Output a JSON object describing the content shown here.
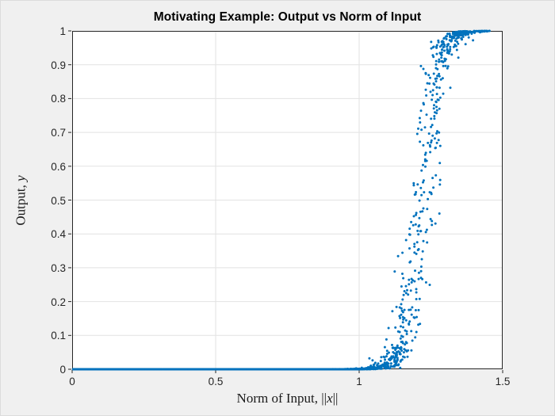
{
  "figure": {
    "background_color": "#f0f0f0",
    "axes_background_color": "#ffffff",
    "axes_border_color": "#262626",
    "grid_color": "#e2e2e2",
    "tick_mark_color": "#262626",
    "tick_label_color": "#252525",
    "marker_color": "#0072bd"
  },
  "chart_data": {
    "type": "scatter",
    "title": "Motivating Example: Output vs Norm of Input",
    "xlabel": {
      "prefix": "Norm of Input, ",
      "open_bar": "||",
      "symbol": "x",
      "close_bar": "||"
    },
    "ylabel": {
      "prefix": "Output, ",
      "symbol": "y"
    },
    "xlim": [
      0,
      1.5
    ],
    "ylim": [
      0,
      1
    ],
    "x_ticks": {
      "values": [
        0,
        0.5,
        1,
        1.5
      ],
      "labels": [
        "0",
        "0.5",
        "1",
        "1.5"
      ]
    },
    "y_ticks": {
      "values": [
        0,
        0.1,
        0.2,
        0.3,
        0.4,
        0.5,
        0.6,
        0.7,
        0.8,
        0.9,
        1
      ],
      "labels": [
        "0",
        "0.1",
        "0.2",
        "0.3",
        "0.4",
        "0.5",
        "0.6",
        "0.7",
        "0.8",
        "0.9",
        "1"
      ]
    },
    "grid": "on",
    "legend": "none",
    "marker": {
      "shape": "filled-circle",
      "radius_px": 1.5,
      "color": "#0072bd"
    },
    "trend_points": [
      {
        "x": 0.0,
        "y": 0.0
      },
      {
        "x": 0.5,
        "y": 0.0
      },
      {
        "x": 0.9,
        "y": 0.0
      },
      {
        "x": 1.0,
        "y": 0.001
      },
      {
        "x": 1.08,
        "y": 0.01
      },
      {
        "x": 1.12,
        "y": 0.03
      },
      {
        "x": 1.16,
        "y": 0.11
      },
      {
        "x": 1.2,
        "y": 0.33
      },
      {
        "x": 1.22,
        "y": 0.5
      },
      {
        "x": 1.25,
        "y": 0.74
      },
      {
        "x": 1.28,
        "y": 0.9
      },
      {
        "x": 1.32,
        "y": 0.97
      },
      {
        "x": 1.36,
        "y": 0.99
      },
      {
        "x": 1.42,
        "y": 1.0
      }
    ],
    "point_model": {
      "description": "y = 1/(1+exp(-((x-x0)/s + e))), e ~ Normal(0, noise_sd); x sampled uniformly per segment",
      "x0": 1.22,
      "s": 0.028,
      "noise_sd": 0.9,
      "seed": 7,
      "segments": [
        {
          "x_min": 0.003,
          "x_max": 1.38,
          "count": 2600
        },
        {
          "x_min": 1.38,
          "x_max": 1.455,
          "count": 45
        }
      ]
    }
  }
}
